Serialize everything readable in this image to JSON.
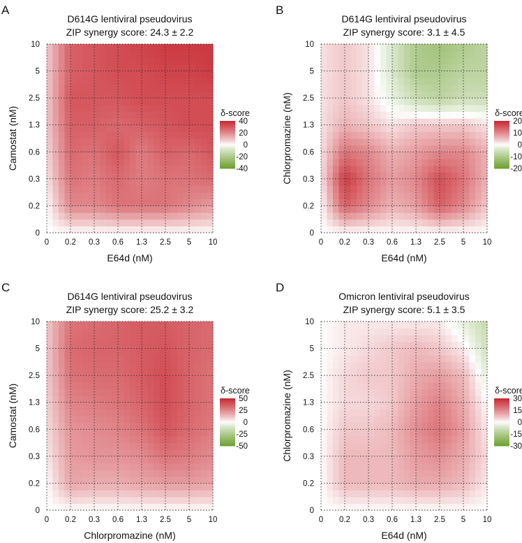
{
  "chart_data": [
    {
      "type": "heatmap",
      "panel_letter": "A",
      "title": "D614G lentiviral pseudovirus",
      "subtitle": "ZIP synergy score: 24.3 ± 2.2",
      "xlabel": "E64d (nM)",
      "ylabel": "Camostat (nM)",
      "x_ticks": [
        "0",
        "0.2",
        "0.3",
        "0.6",
        "1.3",
        "2.5",
        "5",
        "10"
      ],
      "y_ticks": [
        "0",
        "0.2",
        "0.3",
        "0.6",
        "1.3",
        "2.5",
        "5",
        "10"
      ],
      "grid": true,
      "legend": {
        "title": "δ-score",
        "ticks": [
          "40",
          "20",
          "0",
          "-20",
          "-40"
        ],
        "max": 40,
        "min": -40,
        "position": "right"
      },
      "values": [
        [
          0,
          0,
          0,
          0,
          0,
          0,
          0,
          0
        ],
        [
          0,
          20,
          20,
          24,
          24,
          24,
          20,
          16
        ],
        [
          4,
          24,
          22,
          26,
          22,
          24,
          24,
          26
        ],
        [
          6,
          26,
          24,
          30,
          22,
          28,
          26,
          30
        ],
        [
          8,
          28,
          28,
          26,
          28,
          30,
          32,
          32
        ],
        [
          8,
          30,
          30,
          30,
          32,
          32,
          32,
          32
        ],
        [
          8,
          28,
          30,
          32,
          32,
          34,
          34,
          36
        ],
        [
          8,
          28,
          30,
          32,
          34,
          36,
          36,
          36
        ]
      ]
    },
    {
      "type": "heatmap",
      "panel_letter": "B",
      "title": "D614G lentiviral pseudovirus",
      "subtitle": "ZIP synergy score: 3.1 ± 4.5",
      "xlabel": "E64d (nM)",
      "ylabel": "Chlorpromazine (nM)",
      "x_ticks": [
        "0",
        "0.2",
        "0.3",
        "0.6",
        "1.3",
        "2.5",
        "5",
        "10"
      ],
      "y_ticks": [
        "0",
        "0.2",
        "0.3",
        "0.6",
        "1.3",
        "2.5",
        "5",
        "10"
      ],
      "grid": true,
      "legend": {
        "title": "δ-score",
        "ticks": [
          "20",
          "10",
          "0",
          "-10",
          "-20"
        ],
        "max": 20,
        "min": -20,
        "position": "right"
      },
      "values": [
        [
          0,
          0,
          0,
          0,
          0,
          0,
          0,
          0
        ],
        [
          0,
          14,
          10,
          6,
          8,
          14,
          10,
          4
        ],
        [
          2,
          18,
          12,
          8,
          10,
          16,
          12,
          6
        ],
        [
          2,
          12,
          10,
          6,
          8,
          10,
          10,
          6
        ],
        [
          2,
          6,
          4,
          2,
          4,
          4,
          4,
          2
        ],
        [
          2,
          4,
          2,
          -2,
          -6,
          -8,
          -6,
          -6
        ],
        [
          2,
          4,
          2,
          -4,
          -10,
          -10,
          -8,
          -8
        ],
        [
          2,
          4,
          2,
          -4,
          -10,
          -12,
          -10,
          -8
        ]
      ]
    },
    {
      "type": "heatmap",
      "panel_letter": "C",
      "title": "D614G lentiviral pseudovirus",
      "subtitle": "ZIP synergy score: 25.2 ± 3.2",
      "xlabel": "Chlorpromazine (nM)",
      "ylabel": "Camostat (nM)",
      "x_ticks": [
        "0",
        "0.2",
        "0.3",
        "0.6",
        "1.3",
        "2.5",
        "5",
        "10"
      ],
      "y_ticks": [
        "0",
        "0.2",
        "0.3",
        "0.6",
        "1.3",
        "2.5",
        "5",
        "10"
      ],
      "grid": true,
      "legend": {
        "title": "δ-score",
        "ticks": [
          "50",
          "25",
          "0",
          "-25",
          "-50"
        ],
        "max": 50,
        "min": -50,
        "position": "right"
      },
      "values": [
        [
          0,
          0,
          0,
          0,
          0,
          0,
          0,
          0
        ],
        [
          0,
          18,
          16,
          16,
          18,
          20,
          20,
          18
        ],
        [
          4,
          20,
          22,
          22,
          24,
          30,
          28,
          24
        ],
        [
          6,
          22,
          24,
          26,
          30,
          38,
          32,
          28
        ],
        [
          8,
          26,
          28,
          30,
          34,
          40,
          34,
          30
        ],
        [
          10,
          30,
          32,
          32,
          36,
          40,
          34,
          30
        ],
        [
          10,
          32,
          34,
          34,
          36,
          38,
          34,
          32
        ],
        [
          10,
          30,
          32,
          34,
          36,
          36,
          34,
          32
        ]
      ]
    },
    {
      "type": "heatmap",
      "panel_letter": "D",
      "title": "Omicron lentiviral pseudovirus",
      "subtitle": "ZIP synergy score: 5.1 ± 3.5",
      "xlabel": "E64d (nM)",
      "ylabel": "Chlorpromazine (nM)",
      "x_ticks": [
        "0",
        "0.2",
        "0.3",
        "0.6",
        "1.3",
        "2.5",
        "5",
        "10"
      ],
      "y_ticks": [
        "0",
        "0.2",
        "0.3",
        "0.6",
        "1.3",
        "2.5",
        "5",
        "10"
      ],
      "grid": true,
      "legend": {
        "title": "δ-score",
        "ticks": [
          "30",
          "15",
          "0",
          "-15",
          "-30"
        ],
        "max": 30,
        "min": -30,
        "position": "right"
      },
      "values": [
        [
          0,
          0,
          0,
          0,
          0,
          0,
          0,
          0
        ],
        [
          0,
          8,
          8,
          8,
          10,
          10,
          8,
          2
        ],
        [
          0,
          8,
          8,
          8,
          12,
          14,
          10,
          4
        ],
        [
          0,
          6,
          6,
          8,
          14,
          18,
          12,
          2
        ],
        [
          0,
          4,
          4,
          6,
          12,
          16,
          10,
          0
        ],
        [
          0,
          4,
          6,
          6,
          10,
          12,
          8,
          -4
        ],
        [
          0,
          2,
          4,
          6,
          8,
          6,
          2,
          -8
        ],
        [
          0,
          2,
          2,
          2,
          2,
          2,
          -4,
          -10
        ]
      ]
    }
  ]
}
